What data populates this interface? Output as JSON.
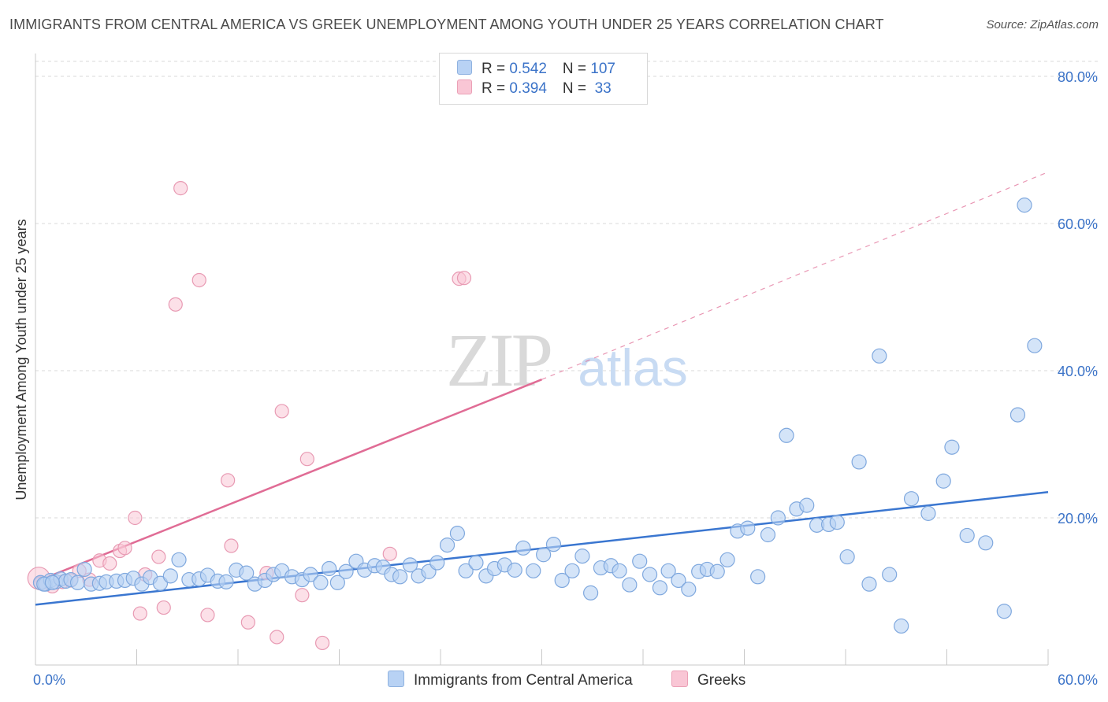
{
  "title": "IMMIGRANTS FROM CENTRAL AMERICA VS GREEK UNEMPLOYMENT AMONG YOUTH UNDER 25 YEARS CORRELATION CHART",
  "source": "Source: ZipAtlas.com",
  "watermark": {
    "zip": "ZIP",
    "atlas": "atlas"
  },
  "legend": {
    "blue": {
      "r_label": "R = ",
      "r_value": "0.542",
      "n_label": "N = ",
      "n_value": "107"
    },
    "pink": {
      "r_label": "R = ",
      "r_value": "0.394",
      "n_label": "N = ",
      "n_value": " 33"
    }
  },
  "bottom_legend": {
    "blue": "Immigrants from Central America",
    "pink": "Greeks"
  },
  "colors": {
    "blue": "#3a76d0",
    "blue_fill": "#b8d2f4",
    "pink": "#e06c95",
    "pink_fill": "#f9c6d5",
    "axis_text": "#3b73c8"
  },
  "chart_data": {
    "type": "scatter",
    "title": "IMMIGRANTS FROM CENTRAL AMERICA VS GREEK UNEMPLOYMENT AMONG YOUTH UNDER 25 YEARS CORRELATION CHART",
    "xlabel": "",
    "ylabel": "Unemployment Among Youth under 25 years",
    "xlim": [
      0,
      60
    ],
    "ylim": [
      0,
      80
    ],
    "x_tick_labels": [
      "0.0%",
      "60.0%"
    ],
    "y_tick_labels": [
      "20.0%",
      "40.0%",
      "60.0%",
      "80.0%"
    ],
    "y_ticks": [
      20,
      40,
      60,
      80
    ],
    "grid": true,
    "legend_position": "top-center",
    "series": [
      {
        "name": "Immigrants from Central America",
        "color": "#3a76d0",
        "trend": {
          "x": [
            0,
            60
          ],
          "y": [
            8.2,
            23.5
          ],
          "style": "solid"
        },
        "points": [
          [
            0.3,
            11.2
          ],
          [
            0.6,
            11.0
          ],
          [
            0.9,
            11.5
          ],
          [
            1.2,
            11.3
          ],
          [
            1.5,
            11.7
          ],
          [
            1.8,
            11.4
          ],
          [
            2.1,
            11.6
          ],
          [
            2.5,
            11.2
          ],
          [
            2.9,
            13.0
          ],
          [
            3.3,
            11.0
          ],
          [
            3.8,
            11.1
          ],
          [
            4.2,
            11.3
          ],
          [
            4.8,
            11.4
          ],
          [
            5.3,
            11.5
          ],
          [
            5.8,
            11.8
          ],
          [
            6.3,
            11.0
          ],
          [
            6.8,
            11.9
          ],
          [
            7.4,
            11.1
          ],
          [
            8.0,
            12.1
          ],
          [
            8.5,
            14.3
          ],
          [
            9.1,
            11.6
          ],
          [
            9.7,
            11.7
          ],
          [
            10.2,
            12.2
          ],
          [
            10.8,
            11.4
          ],
          [
            11.3,
            11.3
          ],
          [
            11.9,
            12.9
          ],
          [
            12.5,
            12.5
          ],
          [
            13.0,
            11.0
          ],
          [
            13.6,
            11.5
          ],
          [
            14.1,
            12.3
          ],
          [
            14.6,
            12.8
          ],
          [
            15.2,
            12.0
          ],
          [
            15.8,
            11.6
          ],
          [
            16.3,
            12.3
          ],
          [
            16.9,
            11.2
          ],
          [
            17.4,
            13.1
          ],
          [
            17.9,
            11.2
          ],
          [
            18.4,
            12.7
          ],
          [
            19.0,
            14.1
          ],
          [
            19.5,
            12.9
          ],
          [
            20.1,
            13.5
          ],
          [
            20.6,
            13.3
          ],
          [
            21.1,
            12.3
          ],
          [
            21.6,
            12.0
          ],
          [
            22.2,
            13.6
          ],
          [
            22.7,
            12.1
          ],
          [
            23.3,
            12.7
          ],
          [
            23.8,
            13.9
          ],
          [
            24.4,
            16.3
          ],
          [
            25.0,
            17.9
          ],
          [
            25.5,
            12.8
          ],
          [
            26.1,
            13.9
          ],
          [
            26.7,
            12.1
          ],
          [
            27.2,
            13.1
          ],
          [
            27.8,
            13.6
          ],
          [
            28.4,
            12.9
          ],
          [
            28.9,
            15.9
          ],
          [
            29.5,
            12.8
          ],
          [
            30.1,
            15.0
          ],
          [
            30.7,
            16.4
          ],
          [
            31.2,
            11.5
          ],
          [
            31.8,
            12.8
          ],
          [
            32.4,
            14.8
          ],
          [
            32.9,
            9.8
          ],
          [
            33.5,
            13.2
          ],
          [
            34.1,
            13.5
          ],
          [
            34.6,
            12.8
          ],
          [
            35.2,
            10.9
          ],
          [
            35.8,
            14.1
          ],
          [
            36.4,
            12.3
          ],
          [
            37.0,
            10.5
          ],
          [
            37.5,
            12.8
          ],
          [
            38.1,
            11.5
          ],
          [
            38.7,
            10.3
          ],
          [
            39.3,
            12.7
          ],
          [
            39.8,
            13.0
          ],
          [
            40.4,
            12.7
          ],
          [
            41.0,
            14.3
          ],
          [
            41.6,
            18.2
          ],
          [
            42.2,
            18.6
          ],
          [
            42.8,
            12.0
          ],
          [
            43.4,
            17.7
          ],
          [
            44.0,
            20.0
          ],
          [
            44.5,
            31.2
          ],
          [
            45.1,
            21.2
          ],
          [
            45.7,
            21.7
          ],
          [
            46.3,
            19.0
          ],
          [
            47.0,
            19.1
          ],
          [
            47.5,
            19.4
          ],
          [
            48.1,
            14.7
          ],
          [
            48.8,
            27.6
          ],
          [
            49.4,
            11.0
          ],
          [
            50.0,
            42.0
          ],
          [
            50.6,
            12.3
          ],
          [
            51.3,
            5.3
          ],
          [
            51.9,
            22.6
          ],
          [
            52.9,
            20.6
          ],
          [
            53.8,
            25.0
          ],
          [
            54.3,
            29.6
          ],
          [
            55.2,
            17.6
          ],
          [
            56.3,
            16.6
          ],
          [
            57.4,
            7.3
          ],
          [
            58.2,
            34.0
          ],
          [
            58.6,
            62.5
          ],
          [
            59.2,
            43.4
          ],
          [
            0.5,
            11.0
          ],
          [
            1.0,
            11.2
          ]
        ]
      },
      {
        "name": "Greeks",
        "color": "#e06c95",
        "trend": {
          "x": [
            0,
            30
          ],
          "y": [
            11.3,
            38.8
          ],
          "style": "solid",
          "extended_to": [
            60,
            67.0
          ],
          "extended_style": "dashed"
        },
        "points": [
          [
            0.2,
            11.8
          ],
          [
            0.5,
            11.0
          ],
          [
            1.0,
            10.7
          ],
          [
            1.6,
            11.3
          ],
          [
            2.1,
            11.5
          ],
          [
            2.6,
            12.8
          ],
          [
            3.2,
            11.6
          ],
          [
            3.8,
            14.2
          ],
          [
            4.4,
            13.8
          ],
          [
            5.0,
            15.5
          ],
          [
            5.3,
            15.9
          ],
          [
            5.9,
            20.0
          ],
          [
            6.2,
            7.0
          ],
          [
            6.5,
            12.3
          ],
          [
            7.3,
            14.7
          ],
          [
            7.6,
            7.8
          ],
          [
            8.3,
            49.0
          ],
          [
            8.6,
            64.8
          ],
          [
            9.7,
            52.3
          ],
          [
            10.2,
            6.8
          ],
          [
            11.4,
            25.1
          ],
          [
            11.6,
            16.2
          ],
          [
            12.6,
            5.8
          ],
          [
            13.7,
            12.5
          ],
          [
            14.3,
            3.8
          ],
          [
            14.6,
            34.5
          ],
          [
            15.8,
            9.5
          ],
          [
            16.1,
            28.0
          ],
          [
            17.0,
            3.0
          ],
          [
            21.0,
            15.1
          ],
          [
            25.1,
            52.5
          ],
          [
            25.4,
            52.6
          ],
          [
            0.3,
            11.1
          ]
        ]
      }
    ]
  }
}
